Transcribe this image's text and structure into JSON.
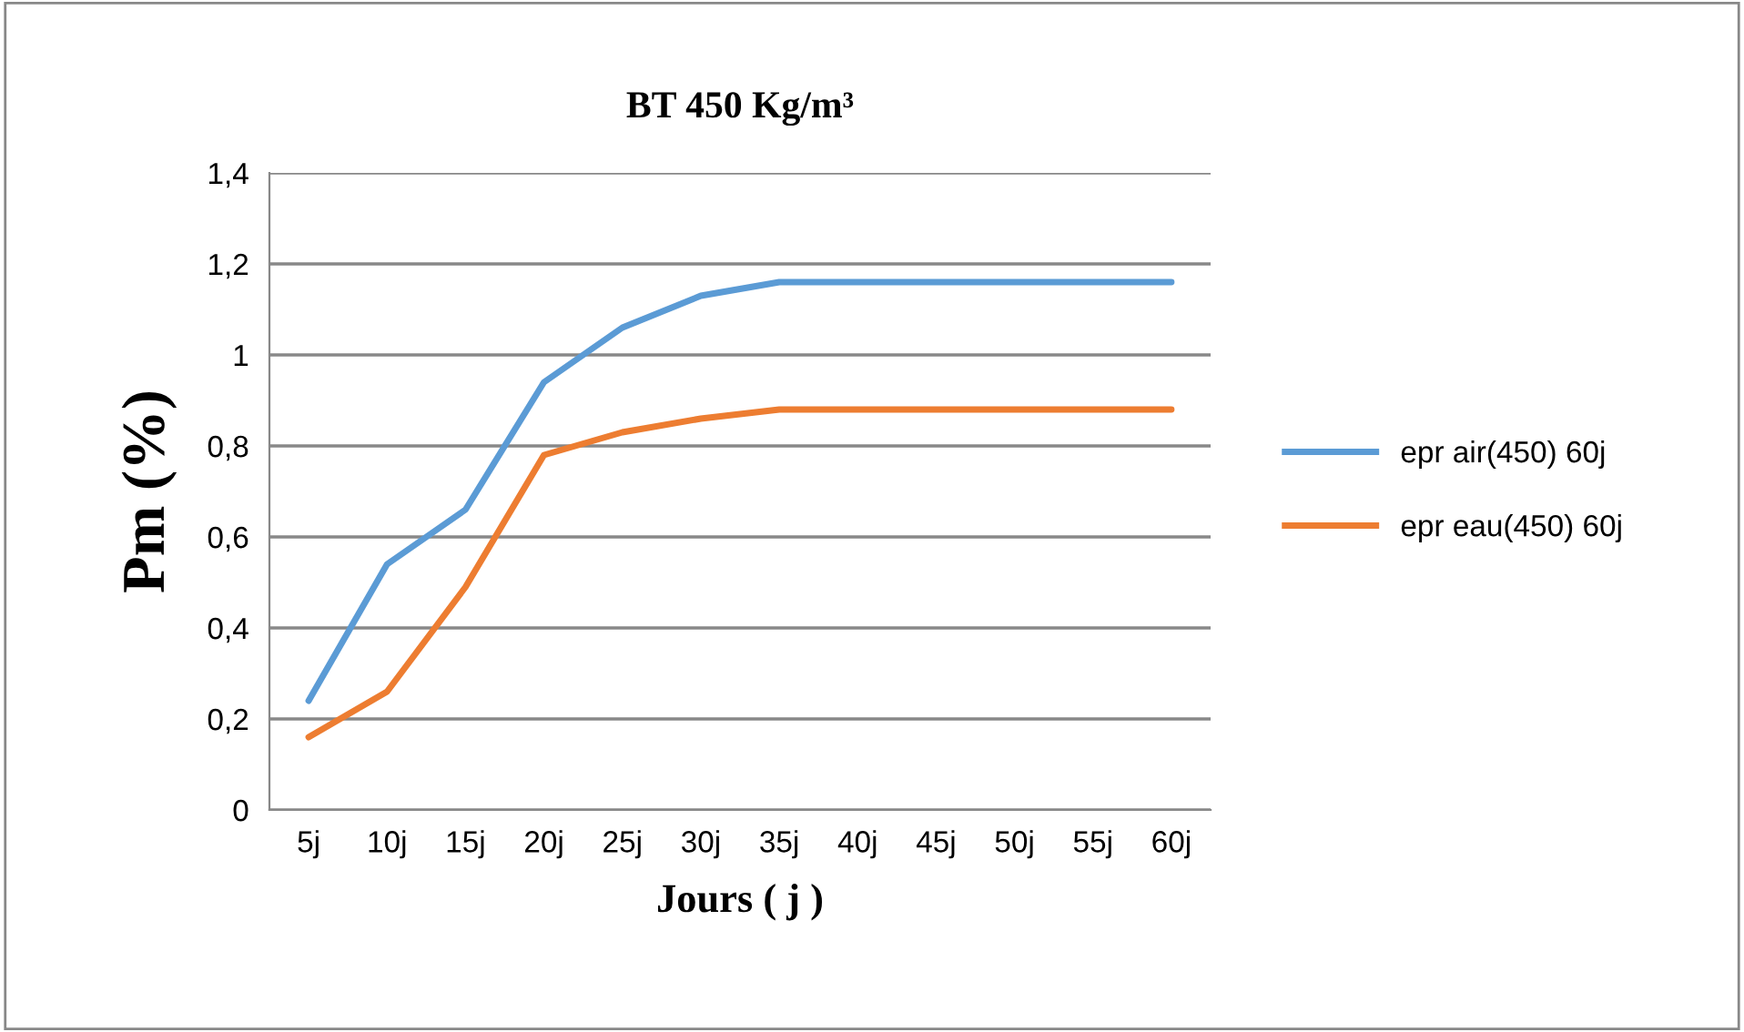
{
  "chart_data": {
    "type": "line",
    "title": "BT 450 Kg/m³",
    "xlabel": "Jours ( j )",
    "ylabel": "Pm (%)",
    "categories": [
      "5j",
      "10j",
      "15j",
      "20j",
      "25j",
      "30j",
      "35j",
      "40j",
      "45j",
      "50j",
      "55j",
      "60j"
    ],
    "series": [
      {
        "name": "epr air(450) 60j",
        "color": "#5b9bd5",
        "values": [
          0.24,
          0.54,
          0.66,
          0.94,
          1.06,
          1.13,
          1.16,
          1.16,
          1.16,
          1.16,
          1.16,
          1.16
        ]
      },
      {
        "name": "epr eau(450) 60j",
        "color": "#ed7d31",
        "values": [
          0.16,
          0.26,
          0.49,
          0.78,
          0.83,
          0.86,
          0.88,
          0.88,
          0.88,
          0.88,
          0.88,
          0.88
        ]
      }
    ],
    "ylim": [
      0,
      1.4
    ],
    "yticks": [
      0,
      {
        "value": 0.2,
        "label": "0,2"
      },
      {
        "value": 0.4,
        "label": "0,4"
      },
      {
        "value": 0.6,
        "label": "0,6"
      },
      {
        "value": 0.8,
        "label": "0,8"
      },
      1,
      {
        "value": 1.2,
        "label": "1,2"
      },
      {
        "value": 1.4,
        "label": "1,4"
      }
    ],
    "grid": "y",
    "legend": "right",
    "marker": "none",
    "line_style": "solid"
  }
}
